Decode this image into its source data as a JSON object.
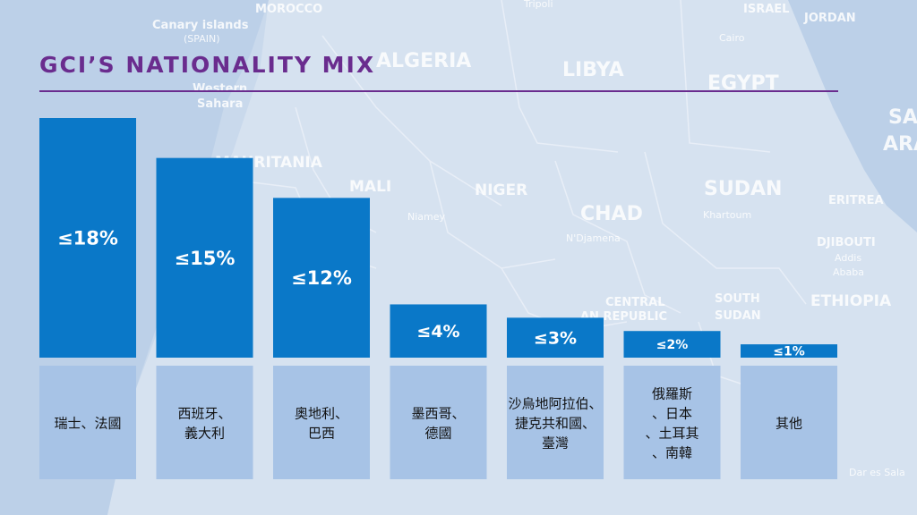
{
  "map": {
    "labels": [
      {
        "text": "MOROCCO",
        "size": "small"
      },
      {
        "text": "Tripoli",
        "size": "tiny"
      },
      {
        "text": "ISRAEL",
        "size": "small"
      },
      {
        "text": "JORDAN",
        "size": "small"
      },
      {
        "text": "Canary islands",
        "size": "small"
      },
      {
        "text": "(SPAIN)",
        "size": "tiny"
      },
      {
        "text": "Cairo",
        "size": "tiny"
      },
      {
        "text": "ALGERIA",
        "size": "large"
      },
      {
        "text": "LIBYA",
        "size": "large"
      },
      {
        "text": "EGYPT",
        "size": "large"
      },
      {
        "text": "Western",
        "size": "small"
      },
      {
        "text": "Sahara",
        "size": "small"
      },
      {
        "text": "MAURITANIA",
        "size": "medium"
      },
      {
        "text": "MALI",
        "size": "medium"
      },
      {
        "text": "NIGER",
        "size": "medium"
      },
      {
        "text": "CHAD",
        "size": "large"
      },
      {
        "text": "SUDAN",
        "size": "large"
      },
      {
        "text": "Khartoum",
        "size": "tiny"
      },
      {
        "text": "ERITREA",
        "size": "small"
      },
      {
        "text": "Niamey",
        "size": "tiny"
      },
      {
        "text": "N'Djamena",
        "size": "tiny"
      },
      {
        "text": "DJIBOUTI",
        "size": "small"
      },
      {
        "text": "Addis",
        "size": "tiny"
      },
      {
        "text": "Ababa",
        "size": "tiny"
      },
      {
        "text": "CENTRAL",
        "size": "small"
      },
      {
        "text": "AN REPUBLIC",
        "size": "small"
      },
      {
        "text": "SOUTH",
        "size": "small"
      },
      {
        "text": "SUDAN",
        "size": "small"
      },
      {
        "text": "ETHIOPIA",
        "size": "medium"
      },
      {
        "text": "SA",
        "size": "large"
      },
      {
        "text": "ARA",
        "size": "large"
      },
      {
        "text": "Dar es Sala",
        "size": "tiny"
      }
    ]
  },
  "colors": {
    "bar": "#0a78c8",
    "category_box": "#a7c3e6",
    "title": "#6a2c8e",
    "bar_text": "#ffffff",
    "category_text": "#111111"
  },
  "chart_data": {
    "type": "bar",
    "title": "GCI’S NATIONALITY MIX",
    "xlabel": "",
    "ylabel": "",
    "ylim": [
      0,
      18
    ],
    "grid": false,
    "legend": "none",
    "categories": [
      [
        "瑞士、法國"
      ],
      [
        "西班牙、",
        "義大利"
      ],
      [
        "奧地利、",
        "巴西"
      ],
      [
        "墨西哥、",
        "德國"
      ],
      [
        "沙烏地阿拉伯、",
        "捷克共和國、",
        "臺灣"
      ],
      [
        "俄羅斯",
        "、日本",
        "、土耳其",
        "、南韓"
      ],
      [
        "其他"
      ]
    ],
    "values": [
      18,
      15,
      12,
      4,
      3,
      2,
      1
    ],
    "data_labels": [
      "≤18%",
      "≤15%",
      "≤12%",
      "≤4%",
      "≤3%",
      "≤2%",
      "≤1%"
    ]
  }
}
